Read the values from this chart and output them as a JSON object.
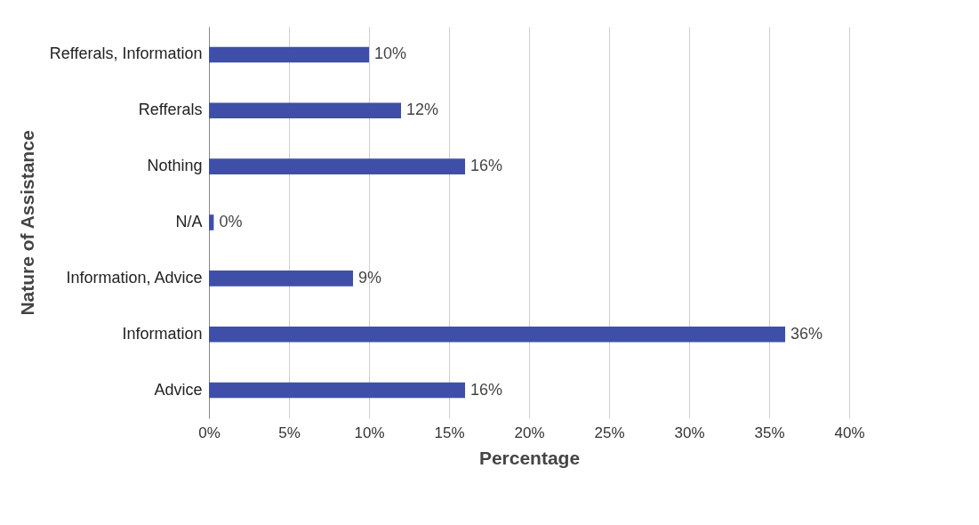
{
  "chart_data": {
    "type": "bar",
    "orientation": "horizontal",
    "xlabel": "Percentage",
    "ylabel": "Nature of Assistance",
    "categories": [
      "Refferals, Information",
      "Refferals",
      "Nothing",
      "N/A",
      "Information, Advice",
      "Information",
      "Advice"
    ],
    "values": [
      10,
      12,
      16,
      0.3,
      9,
      36,
      16
    ],
    "value_labels": [
      "10%",
      "12%",
      "16%",
      "0%",
      "9%",
      "36%",
      "16%"
    ],
    "color": "#3f4fa8",
    "xlim": [
      0,
      40
    ],
    "xticks": [
      {
        "value": 0,
        "label": "0%"
      },
      {
        "value": 5,
        "label": "5%"
      },
      {
        "value": 10,
        "label": "10%"
      },
      {
        "value": 15,
        "label": "15%"
      },
      {
        "value": 20,
        "label": "20%"
      },
      {
        "value": 25,
        "label": "25%"
      },
      {
        "value": 30,
        "label": "30%"
      },
      {
        "value": 35,
        "label": "35%"
      },
      {
        "value": 40,
        "label": "40%"
      }
    ],
    "grid": "x"
  }
}
